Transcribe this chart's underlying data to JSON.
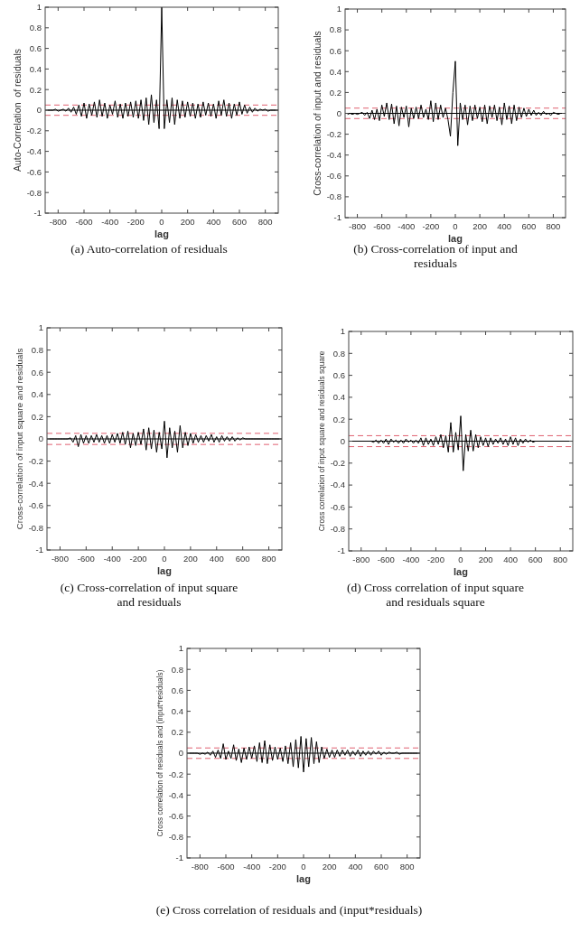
{
  "chart_data": [
    {
      "type": "line",
      "ylabel": "Auto-Correlation  of residuals",
      "xlabel": "lag",
      "annotations": [
        "(a) Auto-correlation of residuals"
      ],
      "xlim": [
        -900,
        900
      ],
      "ylim": [
        -1,
        1
      ],
      "xticks": [
        -800,
        -600,
        -400,
        -200,
        0,
        200,
        400,
        600,
        800
      ],
      "yticks": [
        -1,
        -0.8,
        -0.6,
        -0.4,
        -0.2,
        0,
        0.2,
        0.4,
        0.6,
        0.8,
        1
      ],
      "grid": false,
      "ref_lines": [
        {
          "axis": "y",
          "value": 0.05,
          "color": "#e06070",
          "line_style": "dashed"
        },
        {
          "axis": "y",
          "value": -0.05,
          "color": "#e06070",
          "line_style": "dashed"
        },
        {
          "axis": "y",
          "value": 0,
          "color": "#000000",
          "line_style": "solid"
        }
      ],
      "x": [
        -880,
        -860,
        -840,
        -820,
        -800,
        -780,
        -760,
        -740,
        -720,
        -700,
        -680,
        -660,
        -640,
        -620,
        -600,
        -580,
        -560,
        -540,
        -520,
        -500,
        -480,
        -460,
        -440,
        -420,
        -400,
        -380,
        -360,
        -340,
        -320,
        -300,
        -280,
        -260,
        -240,
        -220,
        -200,
        -180,
        -160,
        -140,
        -120,
        -100,
        -80,
        -60,
        -40,
        -20,
        0,
        20,
        40,
        60,
        80,
        100,
        120,
        140,
        160,
        180,
        200,
        220,
        240,
        260,
        280,
        300,
        320,
        340,
        360,
        380,
        400,
        420,
        440,
        460,
        480,
        500,
        520,
        540,
        560,
        580,
        600,
        620,
        640,
        660,
        680,
        700,
        720,
        740,
        760,
        780,
        800,
        820,
        840,
        860,
        880
      ],
      "series": [
        {
          "color": "#000000",
          "values": [
            0,
            0,
            0,
            0.01,
            -0.01,
            0,
            0.01,
            -0.01,
            0.02,
            -0.02,
            0.03,
            -0.04,
            0.05,
            -0.06,
            0.07,
            -0.08,
            0.06,
            -0.05,
            0.08,
            -0.07,
            0.1,
            -0.06,
            0.07,
            -0.08,
            0.05,
            -0.04,
            0.09,
            -0.07,
            0.06,
            -0.08,
            0.07,
            -0.06,
            0.08,
            -0.07,
            0.09,
            -0.08,
            0.1,
            -0.1,
            0.12,
            -0.14,
            0.15,
            -0.12,
            0.1,
            -0.18,
            1,
            -0.18,
            0.1,
            -0.12,
            0.12,
            -0.14,
            0.1,
            -0.08,
            0.09,
            -0.07,
            0.08,
            -0.06,
            0.07,
            -0.08,
            0.06,
            -0.07,
            0.08,
            -0.05,
            0.07,
            -0.06,
            0.06,
            -0.08,
            0.09,
            -0.05,
            0.1,
            -0.06,
            0.07,
            -0.08,
            0.06,
            -0.05,
            0.08,
            -0.04,
            0.05,
            -0.03,
            0.03,
            -0.02,
            0.02,
            -0.01,
            0.01,
            0,
            0.01,
            -0.01,
            0,
            0,
            0
          ]
        }
      ]
    },
    {
      "type": "line",
      "ylabel": "Cross-correlation of input and residuals",
      "xlabel": "lag",
      "annotations": [
        "(b) Cross-correlation of input and residuals"
      ],
      "xlim": [
        -900,
        900
      ],
      "ylim": [
        -1,
        1
      ],
      "xticks": [
        -800,
        -600,
        -400,
        -200,
        0,
        200,
        400,
        600,
        800
      ],
      "yticks": [
        -1,
        -0.8,
        -0.6,
        -0.4,
        -0.2,
        0,
        0.2,
        0.4,
        0.6,
        0.8,
        1
      ],
      "grid": false,
      "ref_lines": [
        {
          "axis": "y",
          "value": 0.05,
          "color": "#e06070",
          "line_style": "dashed"
        },
        {
          "axis": "y",
          "value": -0.05,
          "color": "#e06070",
          "line_style": "dashed"
        },
        {
          "axis": "y",
          "value": 0,
          "color": "#000000",
          "line_style": "solid"
        }
      ],
      "x": [
        -880,
        -860,
        -840,
        -820,
        -800,
        -780,
        -760,
        -740,
        -720,
        -700,
        -680,
        -660,
        -640,
        -620,
        -600,
        -580,
        -560,
        -540,
        -520,
        -500,
        -480,
        -460,
        -440,
        -420,
        -400,
        -380,
        -360,
        -340,
        -320,
        -300,
        -280,
        -260,
        -240,
        -220,
        -200,
        -180,
        -160,
        -140,
        -120,
        -100,
        -80,
        -60,
        -40,
        -20,
        0,
        20,
        40,
        60,
        80,
        100,
        120,
        140,
        160,
        180,
        200,
        220,
        240,
        260,
        280,
        300,
        320,
        340,
        360,
        380,
        400,
        420,
        440,
        460,
        480,
        500,
        520,
        540,
        560,
        580,
        600,
        620,
        640,
        660,
        680,
        700,
        720,
        740,
        760,
        780,
        800,
        820,
        840,
        860,
        880
      ],
      "series": [
        {
          "color": "#000000",
          "values": [
            -0.01,
            0,
            -0.01,
            0,
            -0.01,
            0,
            0.01,
            -0.02,
            0.01,
            -0.05,
            0.03,
            -0.06,
            0.04,
            -0.07,
            0.08,
            -0.03,
            0.1,
            -0.06,
            0.09,
            -0.1,
            0.07,
            -0.12,
            0.06,
            -0.04,
            0.07,
            -0.13,
            0.05,
            -0.05,
            0.06,
            -0.05,
            0.08,
            -0.04,
            0.04,
            -0.06,
            0.12,
            -0.08,
            0.1,
            -0.06,
            0.08,
            -0.04,
            0.05,
            -0.06,
            -0.22,
            0.2,
            0.5,
            -0.31,
            0.1,
            -0.06,
            0.08,
            -0.11,
            0.07,
            -0.07,
            0.08,
            -0.05,
            0.06,
            -0.08,
            0.08,
            -0.1,
            0.07,
            -0.04,
            0.08,
            -0.07,
            0.06,
            -0.11,
            0.1,
            -0.06,
            0.07,
            -0.1,
            0.08,
            -0.07,
            0.06,
            -0.04,
            0.05,
            -0.03,
            0.04,
            -0.02,
            0.03,
            -0.02,
            0.01,
            -0.02,
            0.02,
            -0.01,
            0,
            -0.02,
            0.01,
            0,
            -0.01,
            0,
            0
          ]
        }
      ]
    },
    {
      "type": "line",
      "ylabel": "Cross-correlation of input square and residuals",
      "xlabel": "lag",
      "annotations": [
        "(c) Cross-correlation of input square and residuals"
      ],
      "xlim": [
        -900,
        900
      ],
      "ylim": [
        -1,
        1
      ],
      "xticks": [
        -800,
        -600,
        -400,
        -200,
        0,
        200,
        400,
        600,
        800
      ],
      "yticks": [
        -1,
        -0.8,
        -0.6,
        -0.4,
        -0.2,
        0,
        0.2,
        0.4,
        0.6,
        0.8,
        1
      ],
      "grid": false,
      "ref_lines": [
        {
          "axis": "y",
          "value": 0.05,
          "color": "#e06070",
          "line_style": "dashed"
        },
        {
          "axis": "y",
          "value": -0.05,
          "color": "#e06070",
          "line_style": "dashed"
        },
        {
          "axis": "y",
          "value": 0,
          "color": "#000000",
          "line_style": "solid"
        }
      ],
      "x": [
        -880,
        -860,
        -840,
        -820,
        -800,
        -780,
        -760,
        -740,
        -720,
        -700,
        -680,
        -660,
        -640,
        -620,
        -600,
        -580,
        -560,
        -540,
        -520,
        -500,
        -480,
        -460,
        -440,
        -420,
        -400,
        -380,
        -360,
        -340,
        -320,
        -300,
        -280,
        -260,
        -240,
        -220,
        -200,
        -180,
        -160,
        -140,
        -120,
        -100,
        -80,
        -60,
        -40,
        -20,
        0,
        20,
        40,
        60,
        80,
        100,
        120,
        140,
        160,
        180,
        200,
        220,
        240,
        260,
        280,
        300,
        320,
        340,
        360,
        380,
        400,
        420,
        440,
        460,
        480,
        500,
        520,
        540,
        560,
        580,
        600,
        620,
        640,
        660,
        680,
        700,
        720,
        740,
        760,
        780,
        800,
        820,
        840,
        860,
        880
      ],
      "series": [
        {
          "color": "#000000",
          "values": [
            0,
            0,
            0,
            0,
            0,
            0,
            0,
            0,
            0.01,
            -0.03,
            0.03,
            -0.07,
            0.04,
            -0.04,
            0.03,
            -0.04,
            0.03,
            -0.03,
            0.04,
            -0.03,
            0.03,
            -0.04,
            0.03,
            -0.04,
            0.04,
            -0.03,
            0.05,
            -0.04,
            0.06,
            -0.05,
            0.07,
            -0.08,
            0.05,
            -0.06,
            0.06,
            -0.05,
            0.09,
            -0.1,
            0.1,
            -0.09,
            0.08,
            -0.12,
            0.06,
            -0.09,
            0.16,
            -0.17,
            0.1,
            -0.08,
            0.07,
            -0.12,
            0.12,
            -0.08,
            0.06,
            -0.06,
            0.05,
            -0.04,
            0.04,
            -0.03,
            0.03,
            -0.03,
            0.03,
            -0.02,
            0.04,
            -0.03,
            0.02,
            -0.03,
            0.03,
            -0.02,
            0.02,
            -0.02,
            0.02,
            -0.02,
            0.01,
            -0.01,
            0.01,
            0,
            0,
            0,
            0,
            0,
            0,
            0,
            0,
            0,
            0,
            0,
            0,
            0,
            0
          ]
        }
      ]
    },
    {
      "type": "line",
      "ylabel": "Cross correlation of input square and residuals square",
      "xlabel": "lag",
      "annotations": [
        "(d) Cross correlation of input square and residuals square"
      ],
      "xlim": [
        -900,
        900
      ],
      "ylim": [
        -1,
        1
      ],
      "xticks": [
        -800,
        -600,
        -400,
        -200,
        0,
        200,
        400,
        600,
        800
      ],
      "yticks": [
        -1,
        -0.8,
        -0.6,
        -0.4,
        -0.2,
        0,
        0.2,
        0.4,
        0.6,
        0.8,
        1
      ],
      "grid": false,
      "ref_lines": [
        {
          "axis": "y",
          "value": 0.05,
          "color": "#e06070",
          "line_style": "dashed"
        },
        {
          "axis": "y",
          "value": -0.05,
          "color": "#e06070",
          "line_style": "dashed"
        },
        {
          "axis": "y",
          "value": 0,
          "color": "#000000",
          "line_style": "solid"
        }
      ],
      "x": [
        -880,
        -860,
        -840,
        -820,
        -800,
        -780,
        -760,
        -740,
        -720,
        -700,
        -680,
        -660,
        -640,
        -620,
        -600,
        -580,
        -560,
        -540,
        -520,
        -500,
        -480,
        -460,
        -440,
        -420,
        -400,
        -380,
        -360,
        -340,
        -320,
        -300,
        -280,
        -260,
        -240,
        -220,
        -200,
        -180,
        -160,
        -140,
        -120,
        -100,
        -80,
        -60,
        -40,
        -20,
        0,
        20,
        40,
        60,
        80,
        100,
        120,
        140,
        160,
        180,
        200,
        220,
        240,
        260,
        280,
        300,
        320,
        340,
        360,
        380,
        400,
        420,
        440,
        460,
        480,
        500,
        520,
        540,
        560,
        580,
        600,
        620,
        640,
        660,
        680,
        700,
        720,
        740,
        760,
        780,
        800,
        820,
        840,
        860,
        880
      ],
      "series": [
        {
          "color": "#000000",
          "values": [
            0,
            0,
            0,
            0,
            0,
            0,
            0,
            0,
            0,
            -0.01,
            0.01,
            -0.02,
            0.01,
            -0.02,
            0.02,
            -0.03,
            0.02,
            -0.01,
            0.01,
            -0.02,
            0.01,
            -0.02,
            0.02,
            -0.01,
            0.01,
            -0.02,
            0.01,
            -0.02,
            0.03,
            -0.04,
            0.03,
            -0.03,
            0.02,
            -0.04,
            0.04,
            -0.03,
            0.06,
            -0.06,
            0.05,
            -0.1,
            0.17,
            -0.1,
            0.08,
            -0.08,
            0.23,
            -0.27,
            0.06,
            -0.09,
            0.1,
            -0.09,
            0.06,
            -0.06,
            0.04,
            -0.04,
            0.03,
            -0.05,
            0.03,
            -0.03,
            0.02,
            -0.02,
            0.03,
            -0.03,
            0.02,
            -0.04,
            0.04,
            -0.03,
            0.03,
            -0.04,
            0.02,
            -0.02,
            0.02,
            -0.01,
            0.01,
            -0.01,
            0,
            0,
            0,
            0,
            0,
            0,
            0,
            0,
            0,
            0,
            0,
            0,
            0,
            0,
            0
          ]
        }
      ]
    },
    {
      "type": "line",
      "ylabel": "Cross correlation of residuals and (input*residuals)",
      "xlabel": "lag",
      "annotations": [
        "(e) Cross correlation of residuals and (input*residuals)"
      ],
      "xlim": [
        -900,
        900
      ],
      "ylim": [
        -1,
        1
      ],
      "xticks": [
        -800,
        -600,
        -400,
        -200,
        0,
        200,
        400,
        600,
        800
      ],
      "yticks": [
        -1,
        -0.8,
        -0.6,
        -0.4,
        -0.2,
        0,
        0.2,
        0.4,
        0.6,
        0.8,
        1
      ],
      "grid": false,
      "ref_lines": [
        {
          "axis": "y",
          "value": 0.05,
          "color": "#e06070",
          "line_style": "dashed"
        },
        {
          "axis": "y",
          "value": -0.05,
          "color": "#e06070",
          "line_style": "dashed"
        },
        {
          "axis": "y",
          "value": 0,
          "color": "#000000",
          "line_style": "solid"
        }
      ],
      "x": [
        -880,
        -860,
        -840,
        -820,
        -800,
        -780,
        -760,
        -740,
        -720,
        -700,
        -680,
        -660,
        -640,
        -620,
        -600,
        -580,
        -560,
        -540,
        -520,
        -500,
        -480,
        -460,
        -440,
        -420,
        -400,
        -380,
        -360,
        -340,
        -320,
        -300,
        -280,
        -260,
        -240,
        -220,
        -200,
        -180,
        -160,
        -140,
        -120,
        -100,
        -80,
        -60,
        -40,
        -20,
        0,
        20,
        40,
        60,
        80,
        100,
        120,
        140,
        160,
        180,
        200,
        220,
        240,
        260,
        280,
        300,
        320,
        340,
        360,
        380,
        400,
        420,
        440,
        460,
        480,
        500,
        520,
        540,
        560,
        580,
        600,
        620,
        640,
        660,
        680,
        700,
        720,
        740,
        760,
        780,
        800,
        820,
        840,
        860,
        880
      ],
      "series": [
        {
          "color": "#000000",
          "values": [
            0,
            0,
            0,
            0,
            -0.01,
            0,
            -0.01,
            0.01,
            -0.02,
            0.02,
            -0.04,
            0.03,
            -0.05,
            0.09,
            -0.06,
            0.02,
            -0.05,
            0.08,
            -0.07,
            0.04,
            -0.09,
            0.05,
            -0.06,
            0.06,
            -0.05,
            0.07,
            -0.08,
            0.1,
            -0.09,
            0.12,
            -0.1,
            0.08,
            -0.07,
            0.06,
            -0.06,
            0.05,
            -0.08,
            0.07,
            -0.1,
            0.1,
            -0.13,
            0.13,
            -0.14,
            0.16,
            -0.18,
            0.14,
            -0.13,
            0.15,
            -0.1,
            0.11,
            -0.09,
            0.06,
            -0.05,
            0.04,
            -0.04,
            0.03,
            -0.04,
            0.03,
            -0.03,
            0.03,
            -0.02,
            0.03,
            -0.03,
            0.02,
            -0.02,
            0.03,
            -0.03,
            0.02,
            -0.02,
            0.02,
            -0.02,
            0.02,
            -0.01,
            0.02,
            -0.02,
            0.01,
            -0.01,
            0.01,
            0,
            0,
            0.01,
            -0.01,
            0,
            0,
            0,
            0,
            0,
            0,
            0
          ]
        }
      ]
    }
  ]
}
